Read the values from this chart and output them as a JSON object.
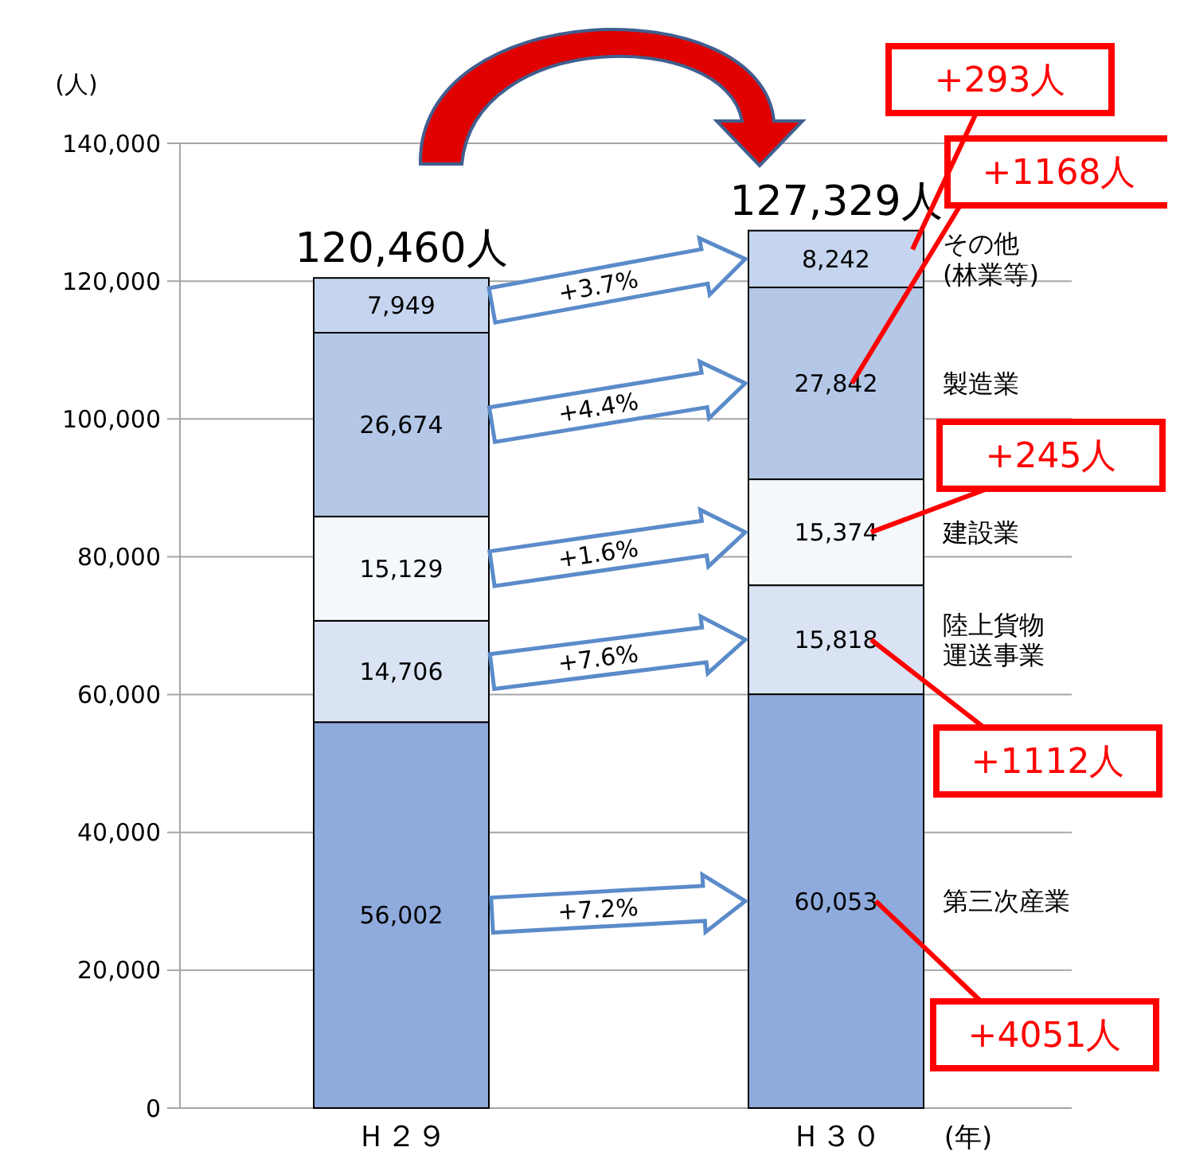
{
  "chart_data": {
    "type": "bar",
    "stacked": true,
    "categories": [
      "Ｈ２９",
      "Ｈ３０"
    ],
    "ylabel": "(人)",
    "xlabel": "(年)",
    "ylim": [
      0,
      140000
    ],
    "yticks": [
      {
        "value": 0,
        "label": "0"
      },
      {
        "value": 20000,
        "label": "20,000"
      },
      {
        "value": 40000,
        "label": "40,000"
      },
      {
        "value": 60000,
        "label": "60,000"
      },
      {
        "value": 80000,
        "label": "80,000"
      },
      {
        "value": 100000,
        "label": "100,000"
      },
      {
        "value": 120000,
        "label": "120,000"
      },
      {
        "value": 140000,
        "label": "140,000"
      }
    ],
    "grid": "y",
    "series": [
      {
        "name": "第三次産業",
        "color": "#8faadc",
        "values": [
          56002,
          60053
        ],
        "value_labels": [
          "56,002",
          "60,053"
        ]
      },
      {
        "name": "陸上貨物運送事業",
        "color": "#dae3f3",
        "values": [
          14706,
          15818
        ],
        "value_labels": [
          "14,706",
          "15,818"
        ]
      },
      {
        "name": "建設業",
        "color": "#f4f7fc",
        "values": [
          15129,
          15374
        ],
        "value_labels": [
          "15,129",
          "15,374"
        ]
      },
      {
        "name": "製造業",
        "color": "#b4c7e7",
        "values": [
          26674,
          27842
        ],
        "value_labels": [
          "26,674",
          "27,842"
        ]
      },
      {
        "name": "その他(林業等)",
        "color": "#c5d5ef",
        "values": [
          7949,
          8242
        ],
        "value_labels": [
          "7,949",
          "8,242"
        ]
      }
    ],
    "totals": [
      "120,460人",
      "127,329人"
    ],
    "annotations": [
      "+7.2%",
      "+7.6%",
      "+1.6%",
      "+4.4%",
      "+3.7%",
      "+4051人",
      "+1112人",
      "+245人",
      "+1168人",
      "+293人"
    ]
  }
}
